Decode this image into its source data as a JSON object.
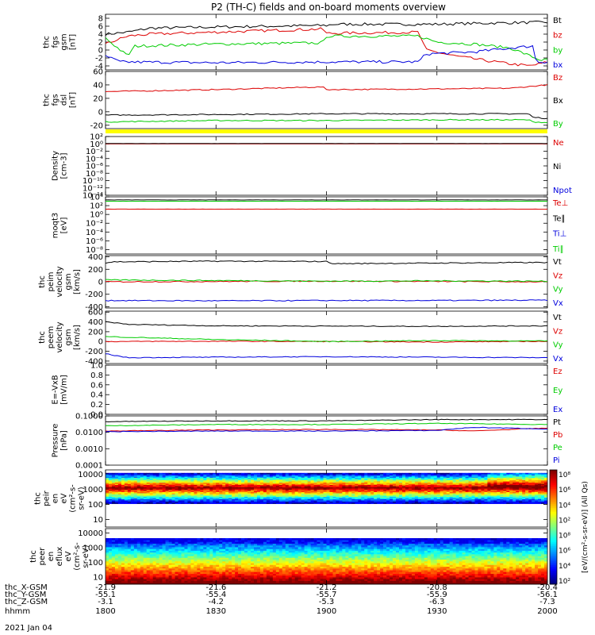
{
  "title": "P2 (TH-C) fields and on-board moments overview",
  "date_label": "2021 Jan 04",
  "colors": {
    "black": "#000000",
    "red": "#dd0000",
    "green": "#00cc00",
    "blue": "#0000dd",
    "yellow": "#ffff00"
  },
  "panels": [
    {
      "id": "fgs-gsm",
      "ylabel": [
        "thc",
        "fgs",
        "gsm",
        "[nT]"
      ],
      "yticks": [
        "8",
        "6",
        "4",
        "2",
        "0",
        "-2",
        "-4"
      ],
      "ylim": [
        -5,
        9
      ],
      "legend": [
        {
          "text": "Bt",
          "color": "black"
        },
        {
          "text": "bz",
          "color": "red"
        },
        {
          "text": "by",
          "color": "green"
        },
        {
          "text": "bx",
          "color": "blue"
        }
      ]
    },
    {
      "id": "fgs-dsl",
      "ylabel": [
        "thc",
        "fgs",
        "dsl",
        "[nT]"
      ],
      "yticks": [
        "60",
        "40",
        "20",
        "0",
        "-20"
      ],
      "ylim": [
        -25,
        60
      ],
      "legend": [
        {
          "text": "Bz",
          "color": "red"
        },
        {
          "text": "Bx",
          "color": "black"
        },
        {
          "text": "By",
          "color": "green"
        }
      ]
    },
    {
      "id": "density",
      "ylabel": [
        "Density",
        "[cm-3]"
      ],
      "yticks": [
        "10²",
        "10⁰",
        "10⁻²",
        "10⁻⁴",
        "10⁻⁶",
        "10⁻⁸",
        "10⁻¹⁰",
        "10⁻¹²",
        "10⁻¹⁴"
      ],
      "ylim": [
        -14,
        2
      ],
      "legend": [
        {
          "text": "Ne",
          "color": "red"
        },
        {
          "text": "Ni",
          "color": "black"
        },
        {
          "text": "Npot",
          "color": "blue"
        }
      ]
    },
    {
      "id": "temperature",
      "ylabel": [
        "moqt3",
        "[eV]"
      ],
      "yticks": [
        "10⁴",
        "10²",
        "10⁰",
        "10⁻²",
        "10⁻⁴",
        "10⁻⁶",
        "10⁻⁸"
      ],
      "ylim": [
        -9,
        4
      ],
      "legend": [
        {
          "text": "Te⊥",
          "color": "red"
        },
        {
          "text": "Te∥",
          "color": "black"
        },
        {
          "text": "Ti⊥",
          "color": "blue"
        },
        {
          "text": "Ti∥",
          "color": "green"
        }
      ]
    },
    {
      "id": "peim-velocity",
      "ylabel": [
        "thc",
        "peim",
        "velocity",
        "gsm",
        "[km/s]"
      ],
      "yticks": [
        "400",
        "200",
        "0",
        "-200",
        "-400"
      ],
      "ylim": [
        -420,
        420
      ],
      "legend": [
        {
          "text": "Vt",
          "color": "black"
        },
        {
          "text": "Vz",
          "color": "red"
        },
        {
          "text": "Vy",
          "color": "green"
        },
        {
          "text": "Vx",
          "color": "blue"
        }
      ]
    },
    {
      "id": "peem-velocity",
      "ylabel": [
        "thc",
        "peem",
        "velocity",
        "gsm",
        "[km/s]"
      ],
      "yticks": [
        "600",
        "400",
        "200",
        "0",
        "-200",
        "-400"
      ],
      "ylim": [
        -450,
        620
      ],
      "legend": [
        {
          "text": "Vt",
          "color": "black"
        },
        {
          "text": "Vz",
          "color": "red"
        },
        {
          "text": "Vy",
          "color": "green"
        },
        {
          "text": "Vx",
          "color": "blue"
        }
      ]
    },
    {
      "id": "efield",
      "ylabel": [
        "E=-VxB",
        "[mV/m]"
      ],
      "yticks": [
        "1.0",
        "0.8",
        "0.6",
        "0.4",
        "0.2",
        "0.0"
      ],
      "ylim": [
        0,
        1
      ],
      "legend": [
        {
          "text": "Ez",
          "color": "red"
        },
        {
          "text": "Ey",
          "color": "green"
        },
        {
          "text": "Ex",
          "color": "blue"
        }
      ]
    },
    {
      "id": "pressure",
      "ylabel": [
        "Pressure",
        "[nPa]"
      ],
      "yticks": [
        "0.1000",
        "0.0100",
        "0.0010",
        "0.0001"
      ],
      "ylim": [
        -4,
        -1
      ],
      "legend": [
        {
          "text": "Pt",
          "color": "black"
        },
        {
          "text": "Pb",
          "color": "red"
        },
        {
          "text": "Pe",
          "color": "green"
        },
        {
          "text": "Pi",
          "color": "blue"
        }
      ]
    },
    {
      "id": "peir-eflux",
      "ylabel": [
        "thc",
        "peir",
        "en",
        "eV",
        "(cm²-s-",
        "sr-eV)"
      ],
      "yticks": [
        "10000",
        "1000",
        "100",
        "10"
      ],
      "ylim": [
        0.5,
        4.3
      ],
      "legend": []
    },
    {
      "id": "peer-eflux",
      "ylabel": [
        "thc",
        "peer",
        "en",
        "eflux",
        "eV",
        "(cm²-s-",
        "sr-eV)"
      ],
      "yticks": [
        "10000",
        "1000",
        "100",
        "10"
      ],
      "ylim": [
        0.5,
        4.3
      ],
      "legend": []
    }
  ],
  "colorbar": {
    "label": "[eV/(cm²-s-sr-eV)] (All Qs)",
    "ticks_upper": [
      "10⁸",
      "10⁶",
      "10⁴",
      "10²"
    ],
    "ticks_lower": [
      "10⁸",
      "10⁶",
      "10⁴",
      "10²"
    ]
  },
  "x_axis": {
    "row_labels": [
      "thc_X-GSM",
      "thc_Y-GSM",
      "thc_Z-GSM",
      "hhmm"
    ],
    "columns": [
      {
        "values": [
          "-21.9",
          "-55.1",
          "-3.1",
          "1800"
        ]
      },
      {
        "values": [
          "-21.6",
          "-55.4",
          "-4.2",
          "1830"
        ]
      },
      {
        "values": [
          "-21.2",
          "-55.7",
          "-5.3",
          "1900"
        ]
      },
      {
        "values": [
          "-20.8",
          "-55.9",
          "-6.3",
          "1930"
        ]
      },
      {
        "values": [
          "-20.4",
          "-56.1",
          "-7.3",
          "2000"
        ]
      }
    ]
  },
  "chart_data": {
    "type": "line",
    "title": "P2 (TH-C) fields and on-board moments overview",
    "x_ticks": [
      "1800",
      "1830",
      "1900",
      "1930",
      "2000"
    ],
    "x_units": "hhmm",
    "series": [
      {
        "panel": "fgs-gsm",
        "name": "Bt",
        "color": "black",
        "knots": [
          [
            1800,
            4.0
          ],
          [
            1806,
            4.5
          ],
          [
            1812,
            5.5
          ],
          [
            1830,
            5.8
          ],
          [
            1900,
            6.2
          ],
          [
            1902,
            6.5
          ],
          [
            1930,
            6.5
          ],
          [
            1945,
            6.8
          ],
          [
            2000,
            7.0
          ]
        ]
      },
      {
        "panel": "fgs-gsm",
        "name": "bz",
        "color": "red",
        "knots": [
          [
            1800,
            1.5
          ],
          [
            1806,
            3.5
          ],
          [
            1812,
            4.0
          ],
          [
            1830,
            4.5
          ],
          [
            1859,
            5.3
          ],
          [
            1900,
            4.2
          ],
          [
            1925,
            4.5
          ],
          [
            1927,
            0.0
          ],
          [
            1935,
            -1.5
          ],
          [
            1942,
            -2.5
          ],
          [
            1950,
            -3.5
          ],
          [
            1955,
            -4.0
          ],
          [
            1958,
            -3.5
          ],
          [
            2000,
            -3.0
          ]
        ]
      },
      {
        "panel": "fgs-gsm",
        "name": "by",
        "color": "green",
        "knots": [
          [
            1800,
            3.0
          ],
          [
            1806,
            -1.5
          ],
          [
            1808,
            1.0
          ],
          [
            1830,
            1.5
          ],
          [
            1859,
            1.8
          ],
          [
            1900,
            3.5
          ],
          [
            1925,
            3.5
          ],
          [
            1930,
            2.0
          ],
          [
            1940,
            1.5
          ],
          [
            1950,
            0.5
          ],
          [
            1958,
            -2.5
          ],
          [
            2000,
            -2.5
          ]
        ]
      },
      {
        "panel": "fgs-gsm",
        "name": "bx",
        "color": "blue",
        "knots": [
          [
            1800,
            -1.5
          ],
          [
            1804,
            -3.0
          ],
          [
            1830,
            -3.2
          ],
          [
            1900,
            -3.0
          ],
          [
            1925,
            -3.0
          ],
          [
            1927,
            -1.0
          ],
          [
            1940,
            -0.5
          ],
          [
            1950,
            0.5
          ],
          [
            1956,
            1.0
          ],
          [
            1957,
            -3.0
          ],
          [
            2000,
            -3.0
          ]
        ]
      },
      {
        "panel": "fgs-dsl",
        "name": "Bz",
        "color": "red",
        "knots": [
          [
            1800,
            30
          ],
          [
            1830,
            33
          ],
          [
            1859,
            37
          ],
          [
            1900,
            33
          ],
          [
            1930,
            34
          ],
          [
            1950,
            35
          ],
          [
            2000,
            40
          ]
        ]
      },
      {
        "panel": "fgs-dsl",
        "name": "Bx",
        "color": "black",
        "knots": [
          [
            1800,
            -5
          ],
          [
            1830,
            -4
          ],
          [
            1900,
            -3
          ],
          [
            1930,
            -3
          ],
          [
            1955,
            -3
          ],
          [
            1956,
            -8
          ],
          [
            2000,
            -10
          ]
        ]
      },
      {
        "panel": "fgs-dsl",
        "name": "By",
        "color": "green",
        "knots": [
          [
            1800,
            -15
          ],
          [
            1830,
            -13
          ],
          [
            1900,
            -13
          ],
          [
            1930,
            -12
          ],
          [
            1955,
            -12
          ],
          [
            1956,
            -15
          ],
          [
            2000,
            -16
          ]
        ]
      },
      {
        "panel": "density",
        "name": "Ne",
        "color": "red",
        "knots": [
          [
            1800,
            0.0
          ],
          [
            2000,
            0.0
          ]
        ]
      },
      {
        "panel": "density",
        "name": "Ni",
        "color": "black",
        "knots": [
          [
            1800,
            0.1
          ],
          [
            2000,
            0.1
          ]
        ]
      },
      {
        "panel": "temperature",
        "name": "Te∥",
        "color": "black",
        "knots": [
          [
            1800,
            3.3
          ],
          [
            2000,
            3.3
          ]
        ]
      },
      {
        "panel": "temperature",
        "name": "Ti∥",
        "color": "green",
        "knots": [
          [
            1800,
            3.0
          ],
          [
            2000,
            3.0
          ]
        ]
      },
      {
        "panel": "temperature",
        "name": "Te⊥",
        "color": "red",
        "knots": [
          [
            1800,
            1.2
          ],
          [
            2000,
            1.2
          ]
        ]
      },
      {
        "panel": "peim-velocity",
        "name": "Vt",
        "color": "black",
        "knots": [
          [
            1800,
            300
          ],
          [
            1802,
            320
          ],
          [
            1830,
            330
          ],
          [
            1900,
            325
          ],
          [
            1902,
            290
          ],
          [
            1930,
            300
          ],
          [
            2000,
            310
          ]
        ]
      },
      {
        "panel": "peim-velocity",
        "name": "Vz",
        "color": "red",
        "knots": [
          [
            1800,
            0
          ],
          [
            1830,
            5
          ],
          [
            1900,
            10
          ],
          [
            1930,
            5
          ],
          [
            2000,
            0
          ]
        ]
      },
      {
        "panel": "peim-velocity",
        "name": "Vy",
        "color": "green",
        "knots": [
          [
            1800,
            30
          ],
          [
            1830,
            20
          ],
          [
            1900,
            10
          ],
          [
            1930,
            15
          ],
          [
            2000,
            10
          ]
        ]
      },
      {
        "panel": "peim-velocity",
        "name": "Vx",
        "color": "blue",
        "knots": [
          [
            1800,
            -300
          ],
          [
            1830,
            -305
          ],
          [
            1900,
            -300
          ],
          [
            1930,
            -300
          ],
          [
            2000,
            -295
          ]
        ]
      },
      {
        "panel": "peem-velocity",
        "name": "Vt",
        "color": "black",
        "knots": [
          [
            1800,
            400
          ],
          [
            1803,
            380
          ],
          [
            1806,
            350
          ],
          [
            1830,
            320
          ],
          [
            1900,
            315
          ],
          [
            1930,
            310
          ],
          [
            2000,
            320
          ]
        ]
      },
      {
        "panel": "peem-velocity",
        "name": "Vz",
        "color": "red",
        "knots": [
          [
            1800,
            0
          ],
          [
            1830,
            5
          ],
          [
            1900,
            0
          ],
          [
            1930,
            -10
          ],
          [
            2000,
            5
          ]
        ]
      },
      {
        "panel": "peem-velocity",
        "name": "Vy",
        "color": "green",
        "knots": [
          [
            1800,
            100
          ],
          [
            1810,
            80
          ],
          [
            1830,
            40
          ],
          [
            1900,
            0
          ],
          [
            1930,
            20
          ],
          [
            2000,
            10
          ]
        ]
      },
      {
        "panel": "peem-velocity",
        "name": "Vx",
        "color": "blue",
        "knots": [
          [
            1800,
            -250
          ],
          [
            1806,
            -330
          ],
          [
            1830,
            -320
          ],
          [
            1900,
            -310
          ],
          [
            1930,
            -320
          ],
          [
            2000,
            -330
          ]
        ]
      },
      {
        "panel": "pressure",
        "name": "Pt",
        "color": "black",
        "knots": [
          [
            1800,
            0.045
          ],
          [
            1830,
            0.05
          ],
          [
            1900,
            0.05
          ],
          [
            1930,
            0.06
          ],
          [
            2000,
            0.06
          ]
        ]
      },
      {
        "panel": "pressure",
        "name": "Pe",
        "color": "green",
        "knots": [
          [
            1800,
            0.025
          ],
          [
            1830,
            0.03
          ],
          [
            1900,
            0.03
          ],
          [
            1930,
            0.035
          ],
          [
            2000,
            0.03
          ]
        ]
      },
      {
        "panel": "pressure",
        "name": "Pb",
        "color": "red",
        "knots": [
          [
            1800,
            0.012
          ],
          [
            1830,
            0.014
          ],
          [
            1900,
            0.015
          ],
          [
            1930,
            0.014
          ],
          [
            1940,
            0.012
          ],
          [
            2000,
            0.018
          ]
        ]
      },
      {
        "panel": "pressure",
        "name": "Pi",
        "color": "blue",
        "knots": [
          [
            1800,
            0.011
          ],
          [
            1830,
            0.012
          ],
          [
            1900,
            0.012
          ],
          [
            1930,
            0.013
          ],
          [
            1940,
            0.02
          ],
          [
            2000,
            0.016
          ]
        ]
      }
    ]
  }
}
